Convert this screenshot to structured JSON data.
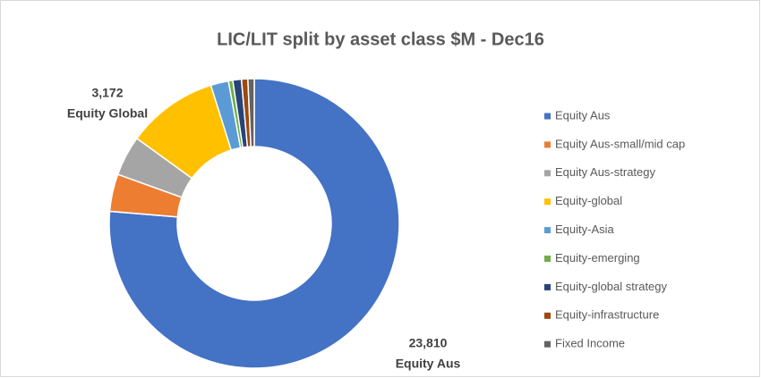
{
  "chart_data": {
    "type": "donut",
    "title": "LIC/LIT split by asset class $M - Dec16",
    "categories": [
      "Equity Aus",
      "Equity Aus-small/mid cap",
      "Equity Aus-strategy",
      "Equity-global",
      "Equity-Asia",
      "Equity-emerging",
      "Equity-global strategy",
      "Equity-infrastructure",
      "Fixed Income"
    ],
    "values": [
      23810,
      1300,
      1400,
      3172,
      620,
      150,
      300,
      220,
      220
    ],
    "value_labels": [
      "23,810",
      null,
      null,
      "3,172",
      null,
      null,
      null,
      null,
      null
    ],
    "label_names": [
      "Equity Aus",
      null,
      null,
      "Equity Global",
      null,
      null,
      null,
      null,
      null
    ],
    "colors": [
      "#4472c4",
      "#ed7d31",
      "#a5a5a5",
      "#ffc000",
      "#5b9bd5",
      "#70ad47",
      "#264478",
      "#9e480e",
      "#636363"
    ],
    "legend": "right"
  }
}
